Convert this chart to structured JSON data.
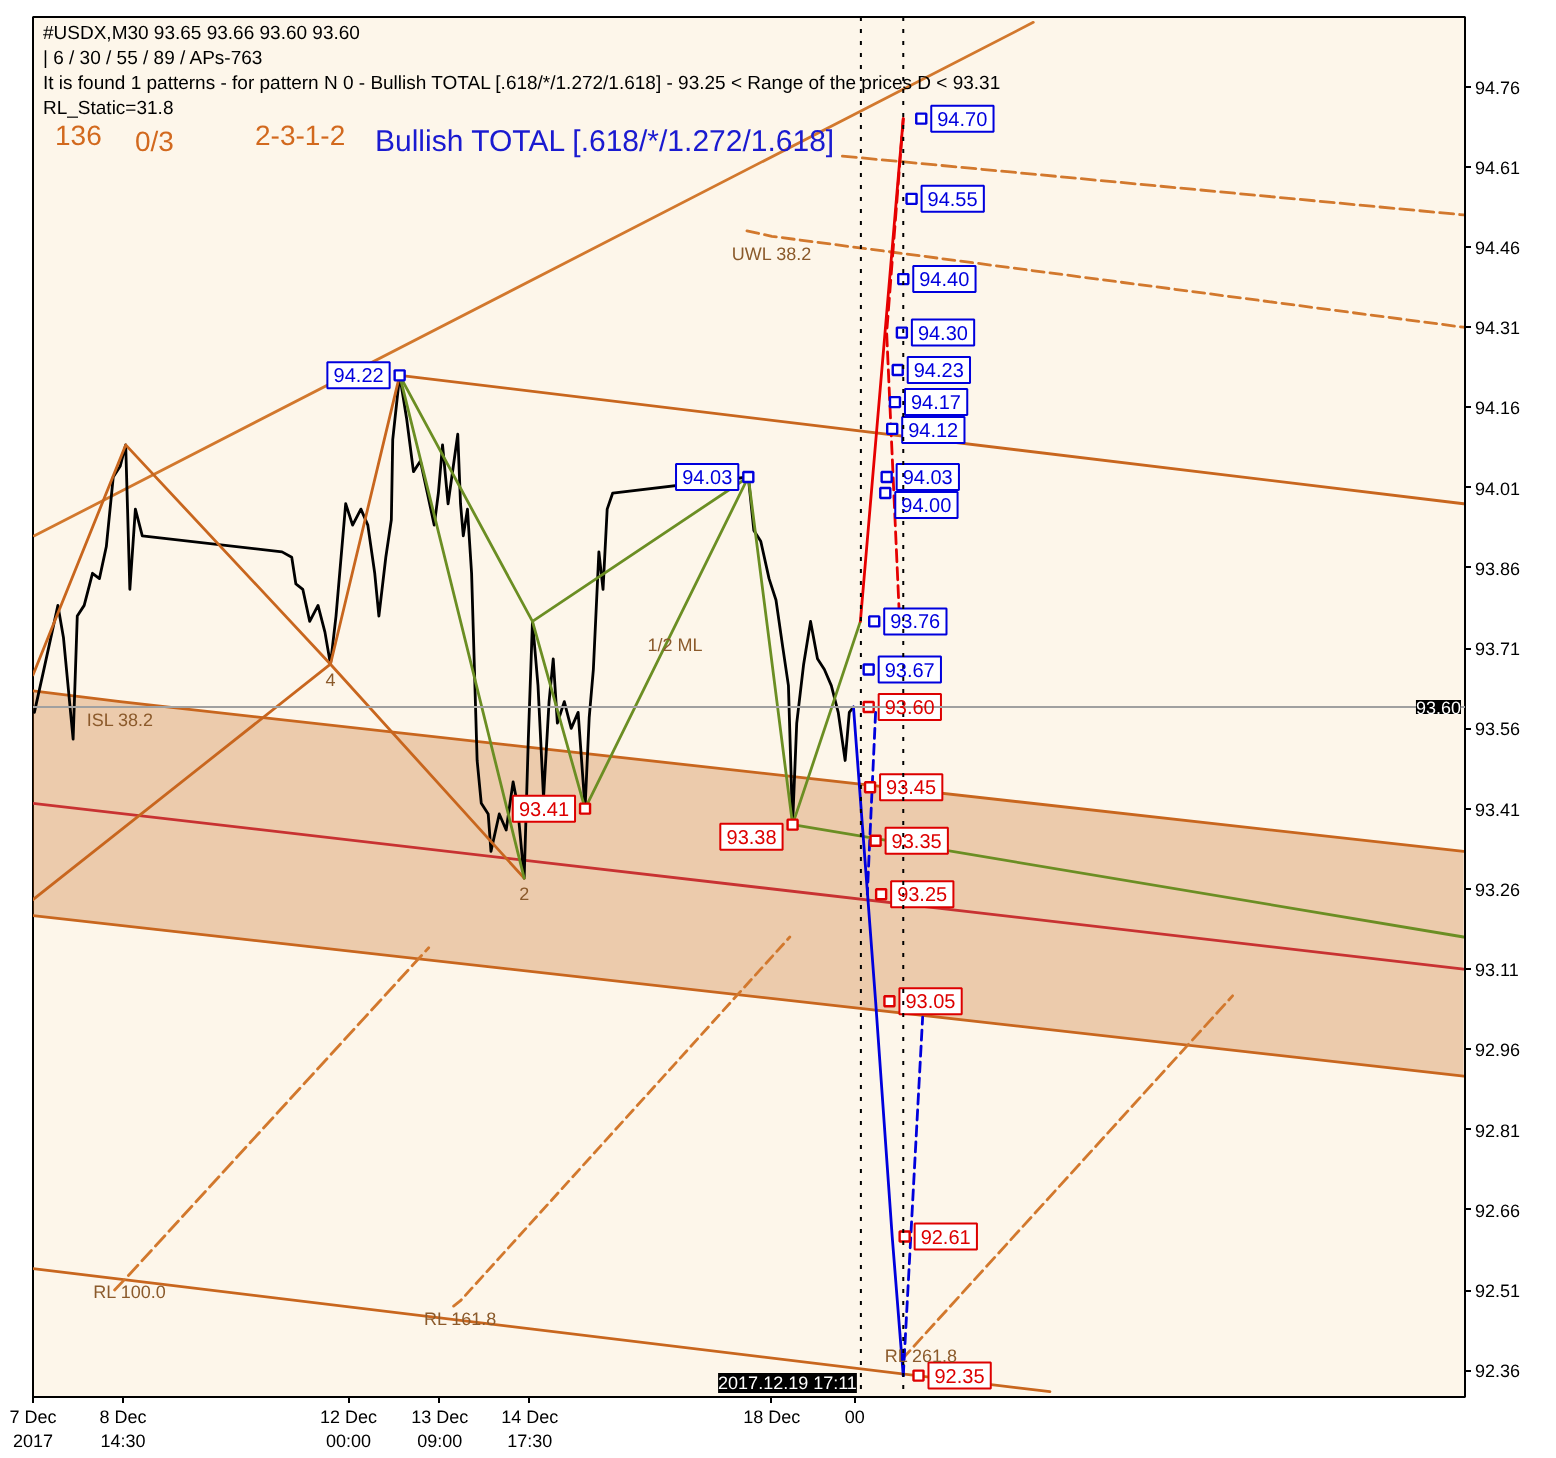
{
  "chart_data": {
    "type": "line",
    "title": "#USDX,M30  93.65 93.66 93.60 93.60",
    "subtitle": "| 6 / 30 / 55 / 89 / APs-763",
    "annotations": [
      "It is found 1 patterns  -  for pattern N 0 - Bullish TOTAL [.618/*/1.272/1.618] - 93.25 < Range of the prices D < 93.31",
      "RL_Static=31.8",
      "136",
      "0/3",
      "2-3-1-2",
      "Bullish TOTAL [.618/*/1.272/1.618]",
      {
        "text": "4",
        "x": "2017-12-11T17:30",
        "y": 93.68
      },
      {
        "text": "2",
        "x": "2017-12-14T15:30",
        "y": 93.28
      },
      {
        "text": "1/2 ML",
        "x": "2017-12-16T22:00",
        "y": 93.75
      },
      {
        "text": "UWL 38.2",
        "x": "2017-12-18T09:00",
        "y": 94.48
      },
      {
        "text": "ISL 38.2",
        "x": "2017-12-08T13:30",
        "y": 93.61
      },
      {
        "text": "RL 100.0",
        "x": "2017-12-08T17:00",
        "y": 92.54
      },
      {
        "text": "RL 161.8",
        "x": "2017-12-13T16:30",
        "y": 92.49
      },
      {
        "text": "RL 261.8",
        "x": "2017-12-20T15:00",
        "y": 92.42
      }
    ],
    "xlim": [
      "2017-12-07T06:00",
      "2017-12-28T19:30"
    ],
    "xticks": [
      {
        "value": "2017-12-07T06:00",
        "label": "7 Dec 2017"
      },
      {
        "value": "2017-12-08T14:30",
        "label": "8 Dec 14:30"
      },
      {
        "value": "2017-12-12T00:00",
        "label": "12 Dec 00:00"
      },
      {
        "value": "2017-12-13T09:00",
        "label": "13 Dec 09:00"
      },
      {
        "value": "2017-12-14T17:30",
        "label": "14 Dec 17:30"
      },
      {
        "value": "2017-12-18T09:00",
        "label": "18 Dec"
      },
      {
        "value": "2017-12-19T15:00",
        "label": "00"
      }
    ],
    "ylim": [
      92.31,
      94.89
    ],
    "yticks": [
      94.76,
      94.61,
      94.46,
      94.31,
      94.16,
      94.01,
      93.86,
      93.71,
      93.56,
      93.41,
      93.26,
      93.11,
      92.96,
      92.81,
      92.66,
      92.51,
      92.36
    ],
    "ref_lines": [
      {
        "axis": "y",
        "value": 93.6,
        "label": "93.60",
        "color": "#a0a0a0",
        "line_style": "solid"
      },
      {
        "axis": "x",
        "value": "2017-12-19T17:11",
        "label": "2017.12.19 17:11",
        "color": "#000000",
        "line_style": "dotted"
      },
      {
        "axis": "x",
        "value": "2017-12-20T08:30",
        "color": "#000000",
        "line_style": "dotted"
      }
    ],
    "series": [
      {
        "color": "#c8661e",
        "x": [
          "2017-12-07T06:00",
          "2017-12-08T13:30",
          "2017-12-28T19:00"
        ],
        "values": [
          93.63,
          93.61,
          93.33
        ],
        "lower": [
          93.21,
          93.19,
          92.91
        ],
        "upper": [
          93.63,
          93.61,
          93.33
        ]
      },
      {
        "color": "#d2782d",
        "x": [
          "2017-12-07T06:30",
          "2017-12-22T07:30"
        ],
        "values": [
          93.92,
          94.88
        ]
      },
      {
        "color": "#c8661e",
        "x": [
          "2017-12-12T18:30",
          "2017-12-28T19:00"
        ],
        "values": [
          94.22,
          93.98
        ]
      },
      {
        "color": "#c83232",
        "x": [
          "2017-12-07T06:00",
          "2017-12-28T19:00"
        ],
        "values": [
          93.42,
          93.11
        ]
      },
      {
        "color": "#6b8e23",
        "x": [
          "2017-12-18T16:30",
          "2017-12-28T19:00"
        ],
        "values": [
          93.38,
          93.17
        ]
      },
      {
        "color": "#c8661e",
        "x": [
          "2017-12-07T06:00",
          "2017-12-28T19:00"
        ],
        "values": [
          93.21,
          92.91
        ]
      },
      {
        "color": "#c8661e",
        "x": [
          "2017-12-07T06:00",
          "2017-12-22T13:30"
        ],
        "values": [
          92.55,
          92.32
        ]
      },
      {
        "color": "#d2782d",
        "line_style": "dashed",
        "x": [
          "2017-12-18T00:00",
          "2017-12-18T09:00",
          "2017-12-28T19:00"
        ],
        "values": [
          94.49,
          94.48,
          94.31
        ]
      },
      {
        "color": "#d2782d",
        "line_style": "dashed",
        "x": [
          "2017-12-19T10:30",
          "2017-12-28T19:00"
        ],
        "values": [
          94.63,
          94.52
        ]
      },
      {
        "color": "#d2782d",
        "line_style": "dashed",
        "x": [
          "2017-12-08T11:30",
          "2017-12-08T17:00",
          "2017-12-13T05:00"
        ],
        "values": [
          92.51,
          92.54,
          93.15
        ]
      },
      {
        "color": "#d2782d",
        "line_style": "dashed",
        "x": [
          "2017-12-13T14:00",
          "2017-12-13T16:30",
          "2017-12-18T15:30"
        ],
        "values": [
          92.48,
          92.49,
          93.17
        ]
      },
      {
        "color": "#d2782d",
        "line_style": "dashed",
        "x": [
          "2017-12-20T08:00",
          "2017-12-20T15:00",
          "2017-12-25T07:30"
        ],
        "values": [
          92.38,
          92.42,
          93.06
        ]
      },
      {
        "color": "#000000",
        "x": [
          "2017-12-07T06:30",
          "2017-12-07T09:30",
          "2017-12-07T15:00",
          "2017-12-07T17:00",
          "2017-12-07T20:30",
          "2017-12-07T22:00",
          "2017-12-08T00:30",
          "2017-12-08T03:30",
          "2017-12-08T06:00",
          "2017-12-08T08:30",
          "2017-12-08T11:00",
          "2017-12-08T13:30",
          "2017-12-08T15:30",
          "2017-12-08T17:00",
          "2017-12-08T19:00",
          "2017-12-08T21:30",
          "2017-12-11T00:00",
          "2017-12-11T03:30",
          "2017-12-11T05:00",
          "2017-12-11T07:30",
          "2017-12-11T10:00",
          "2017-12-11T13:00",
          "2017-12-11T15:30",
          "2017-12-11T17:30",
          "2017-12-11T19:30",
          "2017-12-11T23:00",
          "2017-12-12T01:30",
          "2017-12-12T04:30",
          "2017-12-12T07:00",
          "2017-12-12T09:30",
          "2017-12-12T11:00",
          "2017-12-12T13:30",
          "2017-12-12T15:30",
          "2017-12-12T16:00",
          "2017-12-12T18:30",
          "2017-12-12T21:00",
          "2017-12-12T23:30",
          "2017-12-13T02:00",
          "2017-12-13T04:30",
          "2017-12-13T07:00",
          "2017-12-13T08:30",
          "2017-12-13T10:00",
          "2017-12-13T12:00",
          "2017-12-13T15:30",
          "2017-12-13T16:30",
          "2017-12-13T17:30",
          "2017-12-13T19:00",
          "2017-12-13T20:30",
          "2017-12-13T22:30",
          "2017-12-14T00:00",
          "2017-12-14T02:30",
          "2017-12-14T03:30",
          "2017-12-14T06:30",
          "2017-12-14T09:00",
          "2017-12-14T11:30",
          "2017-12-14T13:00",
          "2017-12-14T15:30",
          "2017-12-14T17:00",
          "2017-12-14T18:30",
          "2017-12-14T20:30",
          "2017-12-14T22:30",
          "2017-12-15T00:30",
          "2017-12-15T02:00",
          "2017-12-15T03:30",
          "2017-12-15T06:00",
          "2017-12-15T08:30",
          "2017-12-15T11:00",
          "2017-12-15T13:30",
          "2017-12-15T15:00",
          "2017-12-15T16:30",
          "2017-12-15T18:30",
          "2017-12-15T20:00",
          "2017-12-15T21:30",
          "2017-12-15T23:30",
          "2017-12-18T00:30",
          "2017-12-18T02:30",
          "2017-12-18T05:00",
          "2017-12-18T08:00",
          "2017-12-18T10:30",
          "2017-12-18T13:00",
          "2017-12-18T15:00",
          "2017-12-18T16:30",
          "2017-12-18T18:00",
          "2017-12-18T20:30",
          "2017-12-18T23:00",
          "2017-12-19T01:30",
          "2017-12-19T04:00",
          "2017-12-19T06:30",
          "2017-12-19T09:00",
          "2017-12-19T11:30",
          "2017-12-19T13:00",
          "2017-12-19T14:30"
        ],
        "values": [
          93.59,
          93.66,
          93.79,
          93.73,
          93.54,
          93.77,
          93.79,
          93.85,
          93.84,
          93.9,
          94.03,
          94.05,
          94.09,
          93.82,
          93.97,
          93.92,
          93.89,
          93.88,
          93.83,
          93.82,
          93.76,
          93.79,
          93.74,
          93.68,
          93.77,
          93.98,
          93.94,
          93.97,
          93.94,
          93.85,
          93.77,
          93.88,
          93.95,
          94.1,
          94.22,
          94.14,
          94.04,
          94.06,
          94.0,
          93.94,
          94.0,
          94.09,
          93.98,
          94.11,
          93.98,
          93.92,
          93.97,
          93.85,
          93.5,
          93.42,
          93.4,
          93.33,
          93.4,
          93.37,
          93.46,
          93.42,
          93.28,
          93.54,
          93.76,
          93.64,
          93.43,
          93.61,
          93.69,
          93.57,
          93.61,
          93.56,
          93.59,
          93.41,
          93.58,
          93.67,
          93.89,
          93.82,
          93.97,
          94.0,
          94.03,
          93.93,
          93.91,
          93.84,
          93.8,
          93.71,
          93.64,
          93.38,
          93.57,
          93.68,
          93.76,
          93.69,
          93.67,
          93.64,
          93.59,
          93.5,
          93.59,
          93.6
        ]
      },
      {
        "color": "#c8661e",
        "x": [
          "2017-12-07T06:00",
          "2017-12-08T15:30",
          "2017-12-11T17:30",
          "2017-12-12T18:30"
        ],
        "values": [
          93.66,
          94.09,
          93.68,
          94.22
        ]
      },
      {
        "color": "#c8661e",
        "x": [
          "2017-12-11T17:30",
          "2017-12-14T15:30"
        ],
        "values": [
          93.68,
          93.28
        ]
      },
      {
        "color": "#c8661e",
        "x": [
          "2017-12-11T17:30",
          "2017-12-07T06:00"
        ],
        "values": [
          93.68,
          93.24
        ]
      },
      {
        "color": "#6b8e23",
        "x": [
          "2017-12-12T18:30",
          "2017-12-14T18:30",
          "2017-12-15T13:30",
          "2017-12-18T00:30",
          "2017-12-18T16:30",
          "2017-12-19T17:00"
        ],
        "values": [
          94.22,
          93.76,
          93.41,
          94.03,
          93.38,
          93.76
        ]
      },
      {
        "color": "#6b8e23",
        "x": [
          "2017-12-12T18:30",
          "2017-12-14T15:30"
        ],
        "values": [
          94.22,
          93.28
        ]
      },
      {
        "color": "#6b8e23",
        "x": [
          "2017-12-14T18:30",
          "2017-12-18T00:30"
        ],
        "values": [
          93.76,
          94.03
        ]
      },
      {
        "color": "#e60000",
        "x": [
          "2017-12-19T17:00",
          "2017-12-20T08:30"
        ],
        "values": [
          93.76,
          94.7
        ]
      },
      {
        "color": "#e60000",
        "line_style": "dashed",
        "x": [
          "2017-12-20T08:30",
          "2017-12-20T02:30",
          "2017-12-20T07:00"
        ],
        "values": [
          94.7,
          94.3,
          93.78
        ]
      },
      {
        "color": "#0000dd",
        "x": [
          "2017-12-19T14:30",
          "2017-12-19T22:30",
          "2017-12-20T04:30",
          "2017-12-20T08:30"
        ],
        "values": [
          93.6,
          93.05,
          92.61,
          92.35
        ]
      },
      {
        "color": "#0000dd",
        "line_style": "dashed",
        "x": [
          "2017-12-20T08:30",
          "2017-12-20T15:30"
        ],
        "values": [
          92.35,
          93.02
        ]
      },
      {
        "color": "#0000dd",
        "line_style": "dashed",
        "x": [
          "2017-12-19T22:30",
          "2017-12-19T19:30"
        ],
        "values": [
          93.59,
          93.25
        ]
      },
      {
        "type": "scatter",
        "color": "#0000dd",
        "marker": "square",
        "x": [
          "2017-12-20T15:00",
          "2017-12-20T11:30",
          "2017-12-20T08:30",
          "2017-12-20T08:00",
          "2017-12-20T06:30",
          "2017-12-20T05:30",
          "2017-12-20T04:30",
          "2017-12-20T02:30",
          "2017-12-20T02:00",
          "2017-12-19T22:00",
          "2017-12-19T20:00"
        ],
        "values": [
          94.7,
          94.55,
          94.4,
          94.3,
          94.23,
          94.17,
          94.12,
          94.03,
          94.0,
          93.76,
          93.67
        ],
        "value_labels": [
          "94.70",
          "94.55",
          "94.40",
          "94.30",
          "94.23",
          "94.17",
          "94.12",
          "94.03",
          "94.00",
          "93.76",
          "93.67"
        ]
      },
      {
        "type": "scatter",
        "color": "#dd0000",
        "marker": "square",
        "x": [
          "2017-12-19T20:00",
          "2017-12-19T20:30",
          "2017-12-19T22:30",
          "2017-12-20T00:30",
          "2017-12-20T03:30",
          "2017-12-20T09:00",
          "2017-12-20T14:00"
        ],
        "values": [
          93.6,
          93.45,
          93.35,
          93.25,
          93.05,
          92.61,
          92.35
        ],
        "value_labels": [
          "93.60",
          "93.45",
          "93.35",
          "93.25",
          "93.05",
          "92.61",
          "92.35"
        ]
      },
      {
        "type": "scatter",
        "color": "#0000dd",
        "marker": "square",
        "x": [
          "2017-12-12T18:30",
          "2017-12-18T00:30"
        ],
        "values": [
          94.22,
          94.03
        ],
        "value_labels": [
          "94.22",
          "94.03"
        ]
      },
      {
        "type": "scatter",
        "color": "#dd0000",
        "marker": "square",
        "x": [
          "2017-12-15T13:30",
          "2017-12-18T16:30"
        ],
        "values": [
          93.41,
          93.38
        ],
        "value_labels": [
          "93.41",
          "93.38"
        ]
      }
    ]
  }
}
